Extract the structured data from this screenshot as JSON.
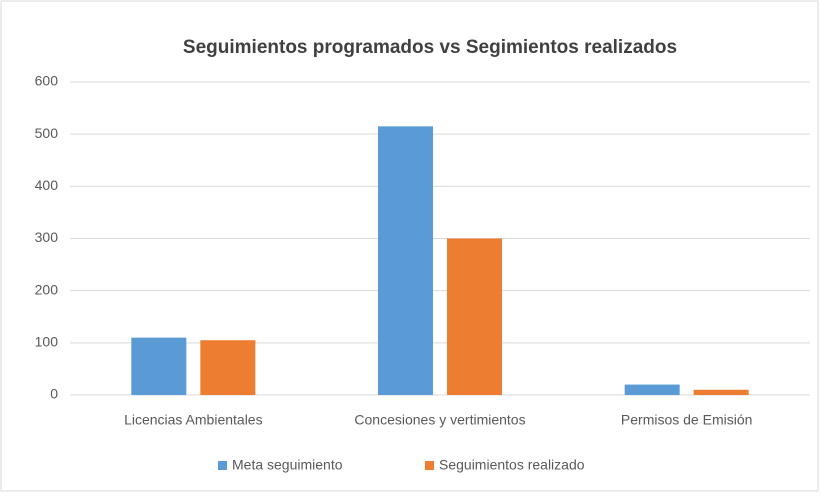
{
  "chart_data": {
    "type": "bar",
    "title": "Seguimientos programados vs Segimientos realizados",
    "categories": [
      "Licencias Ambientales",
      "Concesiones y vertimientos",
      "Permisos de Emisión"
    ],
    "series": [
      {
        "name": "Meta seguimiento",
        "color": "#5b9bd5",
        "values": [
          110,
          515,
          20
        ]
      },
      {
        "name": "Seguimientos realizado",
        "color": "#ed7d31",
        "values": [
          105,
          300,
          10
        ]
      }
    ],
    "ylim": [
      0,
      600
    ],
    "yticks": [
      0,
      100,
      200,
      300,
      400,
      500,
      600
    ],
    "grid": true,
    "legend": "bottom"
  }
}
